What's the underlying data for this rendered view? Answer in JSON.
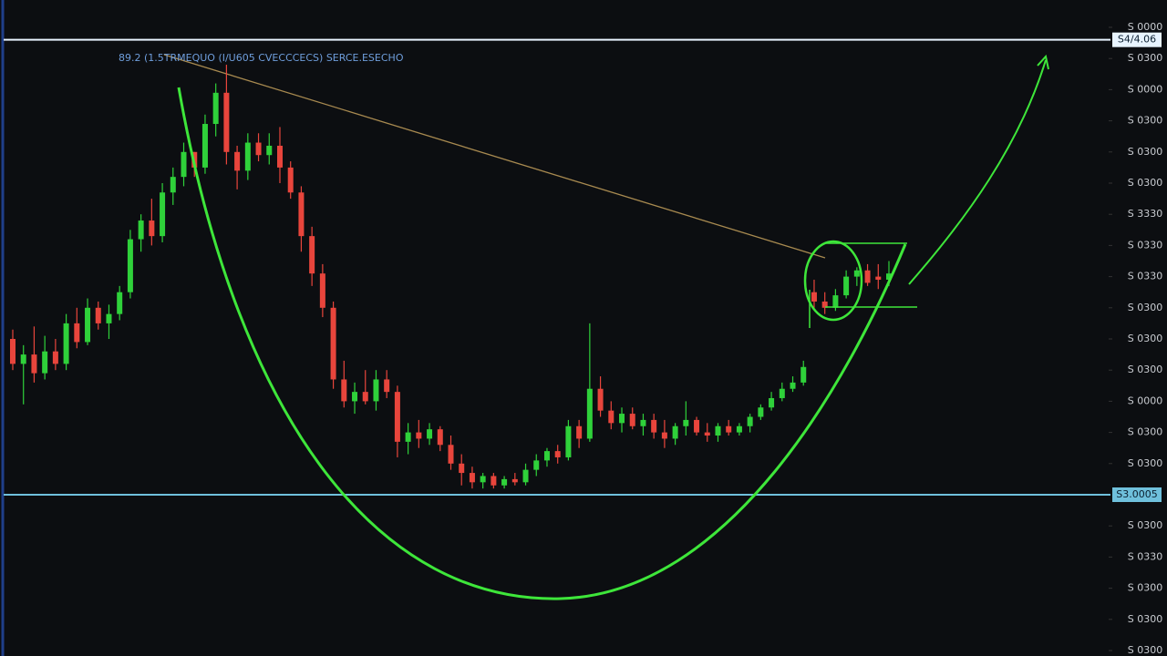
{
  "chart_data": {
    "type": "candlestick",
    "title": "89.2 (1.5TRMEQUO (I/U605 CVECCCECS) SERCE.ESECHO",
    "ylim": [
      0,
      20
    ],
    "yticks": [
      {
        "value": 20,
        "label": "S 0000"
      },
      {
        "value": 19,
        "label": "S 0300"
      },
      {
        "value": 18,
        "label": "S 0000"
      },
      {
        "value": 17,
        "label": "S 0300"
      },
      {
        "value": 16,
        "label": "S 0300"
      },
      {
        "value": 15,
        "label": "S 0300"
      },
      {
        "value": 14,
        "label": "S 3330"
      },
      {
        "value": 13,
        "label": "S 0330"
      },
      {
        "value": 12,
        "label": "S 0330"
      },
      {
        "value": 11,
        "label": "S 0300"
      },
      {
        "value": 10,
        "label": "S 0300"
      },
      {
        "value": 9,
        "label": "S 0300"
      },
      {
        "value": 8,
        "label": "S 0000"
      },
      {
        "value": 7,
        "label": "S 0300"
      },
      {
        "value": 6,
        "label": "S 0300"
      },
      {
        "value": 4,
        "label": "S 0300"
      },
      {
        "value": 3,
        "label": "S 0330"
      },
      {
        "value": 2,
        "label": "S 0300"
      },
      {
        "value": 1,
        "label": "S 0300"
      },
      {
        "value": 0,
        "label": "S 0300"
      }
    ],
    "levels": [
      {
        "value": 19.6,
        "label": "S4/4.06",
        "color": "#e8f4ff"
      },
      {
        "value": 5,
        "label": "S3.0005",
        "color": "#6fc0dc"
      }
    ],
    "up_color": "#2fd13a",
    "down_color": "#e8453c",
    "open": [
      10.0,
      9.2,
      9.5,
      8.9,
      9.6,
      9.2,
      10.5,
      9.9,
      11.0,
      10.5,
      10.8,
      11.5,
      13.2,
      13.8,
      13.3,
      14.7,
      15.2,
      16.0,
      15.5,
      16.9,
      17.9,
      16.0,
      15.4,
      16.3,
      15.9,
      16.2,
      15.5,
      14.7,
      13.3,
      12.1,
      11.0,
      8.7,
      8.0,
      8.3,
      8.0,
      8.7,
      8.3,
      6.7,
      7.0,
      6.8,
      7.1,
      6.6,
      6.0,
      5.7,
      5.4,
      5.6,
      5.3,
      5.5,
      5.4,
      5.8,
      6.1,
      6.4,
      6.2,
      7.2,
      6.8,
      8.4,
      7.7,
      7.3,
      7.6,
      7.2,
      7.4,
      7.0,
      6.8,
      7.2,
      7.4,
      7.0,
      6.9,
      7.2,
      7.0,
      7.2,
      7.5,
      7.8,
      8.1,
      8.4,
      8.6,
      11.5,
      11.2,
      11.0,
      11.4,
      12.0,
      12.2,
      12.0,
      11.9
    ],
    "high": [
      10.3,
      9.8,
      10.4,
      10.1,
      10.0,
      10.8,
      11.0,
      11.3,
      11.2,
      11.1,
      11.7,
      13.5,
      14.0,
      14.5,
      15.0,
      15.5,
      16.3,
      16.0,
      17.2,
      18.2,
      18.8,
      16.2,
      16.6,
      16.6,
      16.6,
      16.8,
      15.7,
      14.9,
      13.6,
      12.4,
      11.2,
      9.3,
      8.6,
      9.0,
      9.0,
      9.0,
      8.5,
      7.3,
      7.4,
      7.3,
      7.2,
      6.9,
      6.3,
      5.9,
      5.7,
      5.7,
      5.6,
      5.7,
      6.0,
      6.3,
      6.5,
      6.6,
      7.4,
      7.4,
      10.5,
      8.8,
      8.0,
      7.8,
      7.8,
      7.6,
      7.6,
      7.4,
      7.3,
      8.0,
      7.5,
      7.3,
      7.3,
      7.4,
      7.3,
      7.6,
      7.9,
      8.3,
      8.6,
      8.8,
      9.3,
      11.9,
      11.5,
      11.6,
      12.2,
      12.3,
      12.4,
      12.4,
      12.5
    ],
    "low": [
      9.0,
      7.9,
      8.6,
      8.7,
      9.0,
      9.0,
      9.7,
      9.8,
      10.3,
      10.0,
      10.6,
      11.3,
      12.8,
      13.0,
      13.1,
      14.3,
      14.9,
      15.2,
      15.3,
      16.5,
      15.6,
      14.8,
      15.1,
      15.7,
      15.6,
      15.0,
      14.5,
      12.8,
      11.7,
      10.7,
      8.4,
      7.8,
      7.6,
      7.9,
      7.7,
      8.1,
      6.2,
      6.3,
      6.5,
      6.6,
      6.4,
      5.8,
      5.3,
      5.2,
      5.2,
      5.2,
      5.2,
      5.3,
      5.3,
      5.6,
      5.9,
      6.0,
      6.1,
      6.5,
      6.7,
      7.5,
      7.1,
      7.0,
      7.1,
      6.9,
      6.8,
      6.5,
      6.6,
      6.9,
      6.9,
      6.7,
      6.7,
      6.9,
      6.9,
      7.0,
      7.4,
      7.7,
      8.0,
      8.3,
      8.5,
      11.0,
      10.8,
      10.9,
      11.3,
      11.7,
      11.7,
      11.6,
      11.7
    ],
    "close": [
      9.2,
      9.5,
      8.9,
      9.6,
      9.2,
      10.5,
      9.9,
      11.0,
      10.5,
      10.8,
      11.5,
      13.2,
      13.8,
      13.3,
      14.7,
      15.2,
      16.0,
      15.5,
      16.9,
      17.9,
      16.0,
      15.4,
      16.3,
      15.9,
      16.2,
      15.5,
      14.7,
      13.3,
      12.1,
      11.0,
      8.7,
      8.0,
      8.3,
      8.0,
      8.7,
      8.3,
      6.7,
      7.0,
      6.8,
      7.1,
      6.6,
      6.0,
      5.7,
      5.4,
      5.6,
      5.3,
      5.5,
      5.4,
      5.8,
      6.1,
      6.4,
      6.2,
      7.2,
      6.8,
      8.4,
      7.7,
      7.3,
      7.6,
      7.2,
      7.4,
      7.0,
      6.8,
      7.2,
      7.4,
      7.0,
      6.9,
      7.2,
      7.0,
      7.2,
      7.5,
      7.8,
      8.1,
      8.4,
      8.6,
      9.1,
      11.2,
      11.0,
      11.4,
      12.0,
      12.2,
      11.8,
      11.9,
      12.1
    ]
  }
}
